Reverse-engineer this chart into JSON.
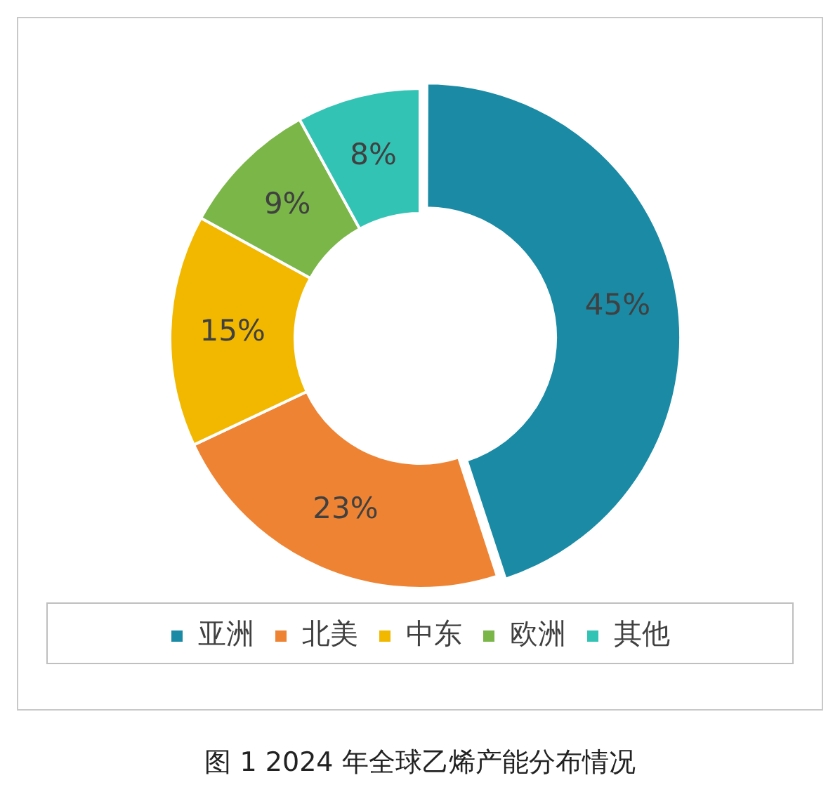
{
  "chart_data": {
    "type": "donut",
    "title": "图 1  2024 年全球乙烯产能分布情况",
    "categories": [
      "亚洲",
      "北美",
      "中东",
      "欧洲",
      "其他"
    ],
    "values": [
      45,
      23,
      15,
      9,
      8
    ],
    "colors": [
      "#1a8aa5",
      "#ee8433",
      "#f2b800",
      "#7ab648",
      "#33c3b5"
    ],
    "value_labels": [
      "45%",
      "23%",
      "15%",
      "9%",
      "8%"
    ],
    "legend": "bottom"
  }
}
